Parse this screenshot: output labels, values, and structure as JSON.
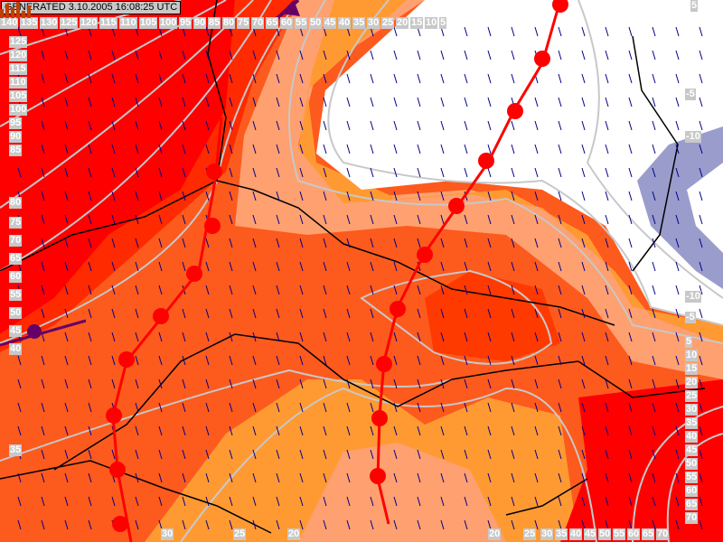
{
  "header": {
    "generated": "GENERATED 3.10.2005 16:08:25 UTC"
  },
  "colors": {
    "deep_red": "#ff0000",
    "red": "#ff2a00",
    "orange_red": "#fd5a1e",
    "orange": "#ff9a33",
    "light_orange": "#ffa070",
    "white": "#ffffff",
    "blue": "#9a9ccc",
    "isoline": "#c8c8c8",
    "front": "#ff0000",
    "occluded": "#660066",
    "wind_arrow": "#00008b",
    "border": "#000000"
  },
  "isoline_labels": {
    "top": [
      "140",
      "135",
      "130",
      "125",
      "120",
      "115",
      "110",
      "105",
      "100",
      "95",
      "90",
      "85",
      "80",
      "75",
      "70",
      "65",
      "60",
      "55",
      "50",
      "45",
      "40",
      "35",
      "30",
      "25",
      "20",
      "15",
      "10",
      "5"
    ],
    "left": [
      "125",
      "120",
      "115",
      "110",
      "105",
      "100",
      "95",
      "90",
      "85",
      "80",
      "75",
      "70",
      "65",
      "60",
      "55",
      "50",
      "45",
      "40",
      "35"
    ],
    "right": [
      "5",
      "-5",
      "-10",
      "-10",
      "-5",
      "5",
      "10",
      "15",
      "20",
      "25",
      "30",
      "35",
      "40",
      "45",
      "50",
      "55",
      "60",
      "65",
      "70"
    ],
    "bottom": [
      "30",
      "25",
      "20",
      "20",
      "25",
      "30",
      "35",
      "40",
      "45",
      "50",
      "55",
      "60",
      "65",
      "70"
    ]
  },
  "legend_icon": "bar-chart-logo-icon"
}
